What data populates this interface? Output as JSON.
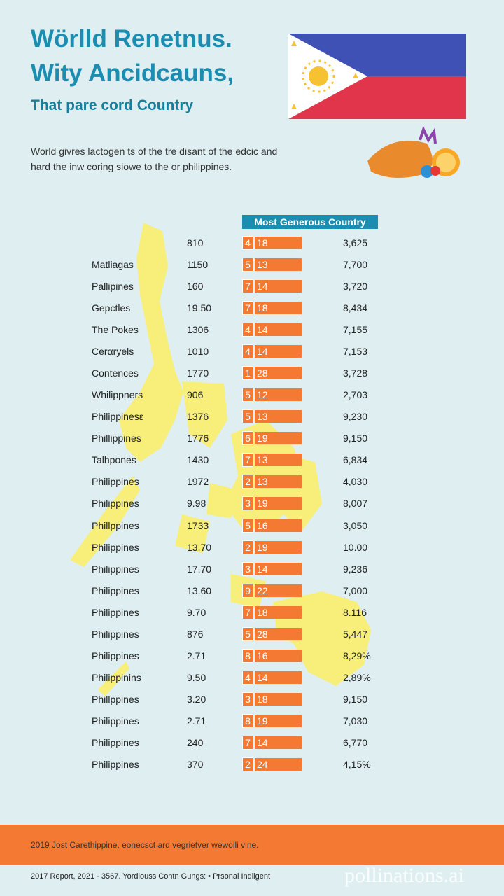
{
  "header": {
    "title_lines": [
      "Wörlld Renetnus.",
      "Wity Ancidcauns,"
    ],
    "subtitle": "That pare cord Country",
    "intro_lines": [
      "World givres lactogen ts of the tre disant of the edcic and",
      "hard the inw coring siowe to the or philippines."
    ]
  },
  "table": {
    "header": "Most Generous Country",
    "rows": [
      {
        "value": "810",
        "badge": "4",
        "bar": "18",
        "right": "3,625"
      },
      {
        "name": "Matliagas",
        "value": "1150",
        "badge": "5",
        "bar": "13",
        "right": "7,700"
      },
      {
        "name": "Pallipines",
        "value": "160",
        "badge": "7",
        "bar": "14",
        "right": "3,720"
      },
      {
        "name": "Gepctles",
        "value": "19.50",
        "badge": "7",
        "bar": "18",
        "right": "8,434"
      },
      {
        "name": "The Pokes",
        "value": "1306",
        "badge": "4",
        "bar": "14",
        "right": "7,155"
      },
      {
        "name": "Cerαryels",
        "value": "1010",
        "badge": "4",
        "bar": "14",
        "right": "7,153"
      },
      {
        "name": "Contences",
        "value": "1770",
        "badge": "1",
        "bar": "28",
        "right": "3,728"
      },
      {
        "name": "Whilippners",
        "value": "906",
        "badge": "5",
        "bar": "12",
        "right": "2,703"
      },
      {
        "name": "Philippinesε",
        "value": "1376",
        "badge": "5",
        "bar": "13",
        "right": "9,230"
      },
      {
        "name": "Phillippines",
        "value": "1776",
        "badge": "6",
        "bar": "19",
        "right": "9,150"
      },
      {
        "name": "Talhpones",
        "value": "1430",
        "badge": "7",
        "bar": "13",
        "right": "6,834"
      },
      {
        "name": "Philippines",
        "value": "1972",
        "badge": "2",
        "bar": "13",
        "right": "4,030"
      },
      {
        "name": "Philippines",
        "value": "9.98",
        "badge": "3",
        "bar": "19",
        "right": "8,007"
      },
      {
        "name": "Phillppines",
        "value": "1733",
        "badge": "5",
        "bar": "16",
        "right": "3,050"
      },
      {
        "name": "Philippines",
        "value": "13.70",
        "badge": "2",
        "bar": "19",
        "right": "10.00"
      },
      {
        "name": "Philippines",
        "value": "17.70",
        "badge": "3",
        "bar": "14",
        "right": "9,236"
      },
      {
        "name": "Philippines",
        "value": "13.60",
        "badge": "9",
        "bar": "22",
        "right": "7,000"
      },
      {
        "name": "Philippines",
        "value": "9.70",
        "badge": "7",
        "bar": "18",
        "right": "8.116"
      },
      {
        "name": "Philippines",
        "value": "876",
        "badge": "5",
        "bar": "28",
        "right": "5,447"
      },
      {
        "name": "Philippines",
        "value": "2.71",
        "badge": "8",
        "bar": "16",
        "right": "8,29%"
      },
      {
        "name": "Philippinins",
        "value": "9.50",
        "badge": "4",
        "bar": "14",
        "right": "2,89%"
      },
      {
        "name": "Phillppines",
        "value": "3.20",
        "badge": "3",
        "bar": "18",
        "right": "9,150"
      },
      {
        "name": "Philippines",
        "value": "2.71",
        "badge": "8",
        "bar": "19",
        "right": "7,030"
      },
      {
        "name": "Philippines",
        "value": "240",
        "badge": "7",
        "bar": "14",
        "right": "6,770"
      },
      {
        "name": "Philippines",
        "value": "370",
        "badge": "2",
        "bar": "24",
        "right": "4,15%"
      }
    ]
  },
  "footer": {
    "band_text": "2019 Jost Carethippine, eonecsct ard vegrietver wewoili vine.",
    "bottom_line": "2017 Report, 2021 · 3567. Yordiouss Contn Gungs: • Prsonal Indligent",
    "watermark": "pollinations.ai"
  }
}
